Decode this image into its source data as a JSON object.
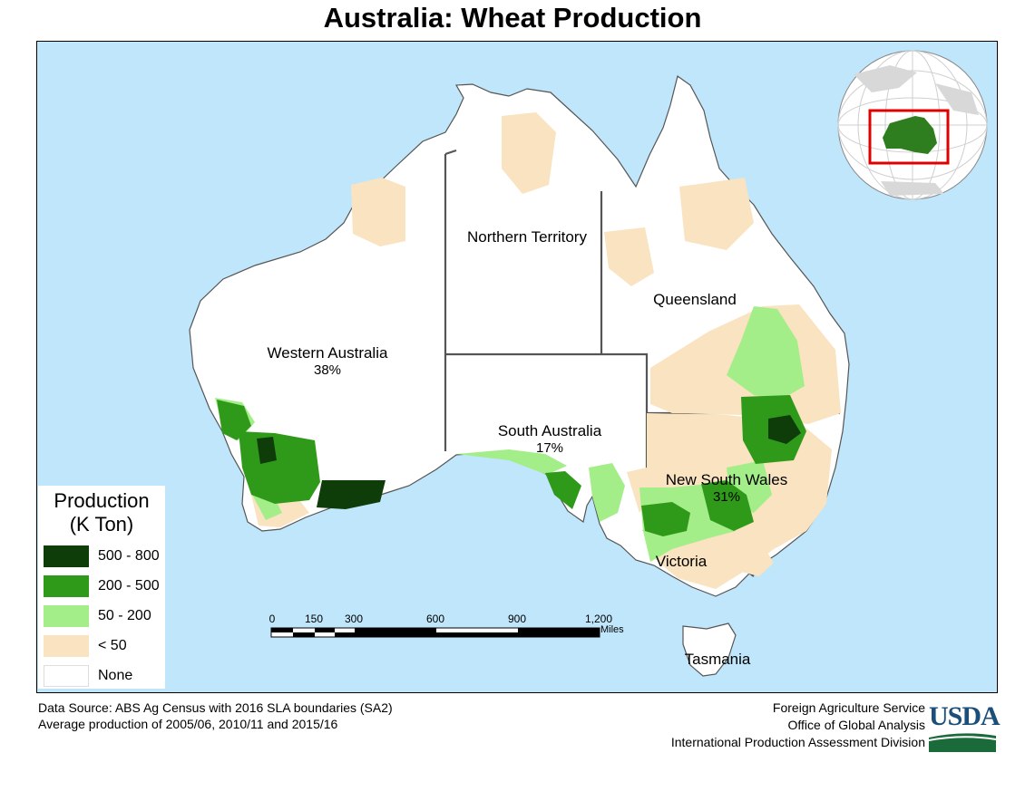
{
  "title": "Australia: Wheat Production",
  "states": [
    {
      "id": "wa",
      "name": "Western Australia",
      "share": "38%"
    },
    {
      "id": "nt",
      "name": "Northern Territory",
      "share": ""
    },
    {
      "id": "qld",
      "name": "Queensland",
      "share": ""
    },
    {
      "id": "sa",
      "name": "South Australia",
      "share": "17%"
    },
    {
      "id": "nsw",
      "name": "New South Wales",
      "share": "31%"
    },
    {
      "id": "vic",
      "name": "Victoria",
      "share": ""
    },
    {
      "id": "tas",
      "name": "Tasmania",
      "share": ""
    }
  ],
  "legend": {
    "title_line1": "Production",
    "title_line2": "(K Ton)",
    "classes": [
      {
        "label": "500 - 800",
        "color": "#0f3d0a"
      },
      {
        "label": "200 - 500",
        "color": "#2f9a1a"
      },
      {
        "label": "50 - 200",
        "color": "#a4ee8a"
      },
      {
        "label": "< 50",
        "color": "#f9e3c0"
      },
      {
        "label": "None",
        "color": "#ffffff"
      }
    ]
  },
  "scale_bar": {
    "ticks": [
      "0",
      "150",
      "300",
      "600",
      "900",
      "1,200"
    ],
    "units": "Miles"
  },
  "source": {
    "line1": "Data Source: ABS Ag Census with 2016 SLA boundaries (SA2)",
    "line2": "Average production of 2005/06, 2010/11 and 2015/16"
  },
  "credits": {
    "line1": "Foreign Agriculture Service",
    "line2": "Office of Global Analysis",
    "line3": "International Production Assessment Division"
  },
  "logo": "USDA",
  "colors": {
    "ocean": "#bfe6fb",
    "land": "#ffffff",
    "border": "#555555",
    "inset_frame": "#e00000",
    "inset_land": "#2e7d1e"
  }
}
